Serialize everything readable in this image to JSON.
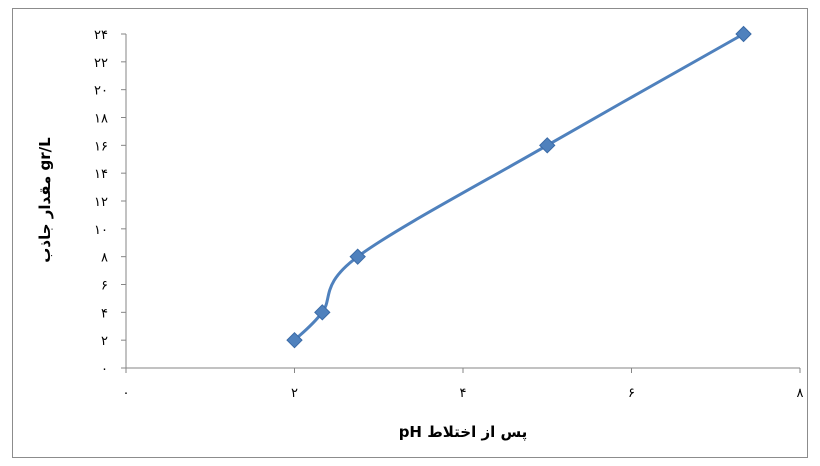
{
  "chart_data": {
    "type": "line",
    "title": "",
    "xlabel": "pH پس از اختلاط",
    "ylabel": "مقدار جاذب gr/L",
    "xlim": [
      0,
      8
    ],
    "ylim": [
      0,
      24
    ],
    "x_ticks": [
      {
        "value": 0,
        "label": "۰"
      },
      {
        "value": 2,
        "label": "۲"
      },
      {
        "value": 4,
        "label": "۴"
      },
      {
        "value": 6,
        "label": "۶"
      },
      {
        "value": 8,
        "label": "۸"
      }
    ],
    "y_ticks": [
      {
        "value": 0,
        "label": "۰"
      },
      {
        "value": 2,
        "label": "۲"
      },
      {
        "value": 4,
        "label": "۴"
      },
      {
        "value": 6,
        "label": "۶"
      },
      {
        "value": 8,
        "label": "۸"
      },
      {
        "value": 10,
        "label": "۱۰"
      },
      {
        "value": 12,
        "label": "۱۲"
      },
      {
        "value": 14,
        "label": "۱۴"
      },
      {
        "value": 16,
        "label": "۱۶"
      },
      {
        "value": 18,
        "label": "۱۸"
      },
      {
        "value": 20,
        "label": "۲۰"
      },
      {
        "value": 22,
        "label": "۲۲"
      },
      {
        "value": 24,
        "label": "۲۴"
      }
    ],
    "grid": false,
    "legend": "none",
    "series": [
      {
        "color": "#4f81bd",
        "marker": "diamond",
        "smooth": true,
        "points": [
          {
            "x": 2.0,
            "y": 2
          },
          {
            "x": 2.33,
            "y": 4
          },
          {
            "x": 2.75,
            "y": 8
          },
          {
            "x": 5.0,
            "y": 16
          },
          {
            "x": 7.33,
            "y": 24
          }
        ]
      }
    ]
  }
}
